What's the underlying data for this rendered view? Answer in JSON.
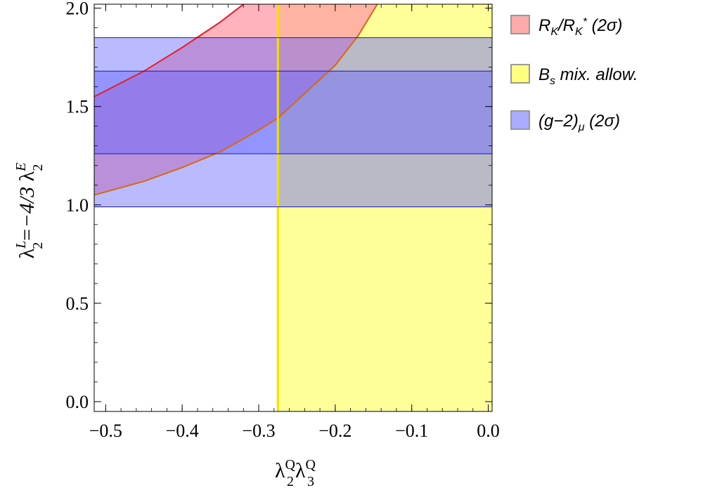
{
  "chart_data": {
    "type": "area",
    "xlabel_parts": {
      "main1": "λ",
      "sup1": "Q",
      "sub1": "2",
      "main2": "λ",
      "sup2": "Q",
      "sub2": "3"
    },
    "ylabel_parts": {
      "main1": "λ",
      "sup1": "L",
      "sub1": "2",
      "mid": "=−4/3 ",
      "main2": "λ",
      "sup2": "E",
      "sub2": "2"
    },
    "xlim": [
      -0.515,
      0.005
    ],
    "ylim": [
      -0.05,
      2.02
    ],
    "x_ticks": [
      -0.5,
      -0.4,
      -0.3,
      -0.2,
      -0.1,
      0.0
    ],
    "x_tick_labels": [
      "−0.5",
      "−0.4",
      "−0.3",
      "−0.2",
      "−0.1",
      "0.0"
    ],
    "y_ticks": [
      0.0,
      0.5,
      1.0,
      1.5,
      2.0
    ],
    "y_tick_labels": [
      "0.0",
      "0.5",
      "1.0",
      "1.5",
      "2.0"
    ],
    "series": [
      {
        "name": "R_K/R_K* (2σ)",
        "legend_label": "R K/R K* (2σ)",
        "kind": "curved-band",
        "color": "#ff9aa6",
        "edge_color": "#e0202a",
        "upper_edge": [
          [
            -0.515,
            1.55
          ],
          [
            -0.45,
            1.68
          ],
          [
            -0.4,
            1.8
          ],
          [
            -0.35,
            1.93
          ],
          [
            -0.32,
            2.02
          ]
        ],
        "lower_edge": [
          [
            -0.515,
            1.05
          ],
          [
            -0.45,
            1.12
          ],
          [
            -0.4,
            1.19
          ],
          [
            -0.35,
            1.27
          ],
          [
            -0.3,
            1.38
          ],
          [
            -0.275,
            1.44
          ],
          [
            -0.25,
            1.53
          ],
          [
            -0.2,
            1.71
          ],
          [
            -0.17,
            1.86
          ],
          [
            -0.145,
            2.02
          ]
        ]
      },
      {
        "name": "B_s mix. allow.",
        "kind": "vertical-region",
        "color": "#ffff99",
        "edge_color": "#f0e000",
        "x_range": [
          -0.275,
          0.005
        ]
      },
      {
        "name": "(g−2)_μ (2σ)",
        "kind": "horizontal-bands",
        "color": "#9999ff",
        "edge_color": "#1b1bb0",
        "outer_range": [
          0.99,
          1.85
        ],
        "inner_range": [
          1.26,
          1.68
        ]
      }
    ],
    "legend": {
      "placement": "right",
      "items": [
        {
          "color": "#ffaaaa",
          "border": "#999999",
          "label_main": "R",
          "label_sub": "K",
          "label_mid": "/R",
          "label_sub2": "K",
          "label_sup": "*",
          "label_end": " (2σ)"
        },
        {
          "color": "#ffff80",
          "border": "#999999",
          "label_main": "B",
          "label_sub": "s",
          "label_end": " mix. allow."
        },
        {
          "color": "#aaaaff",
          "border": "#999999",
          "label_main": "(g−2)",
          "label_sub": "μ",
          "label_end": " (2σ)"
        }
      ]
    }
  }
}
